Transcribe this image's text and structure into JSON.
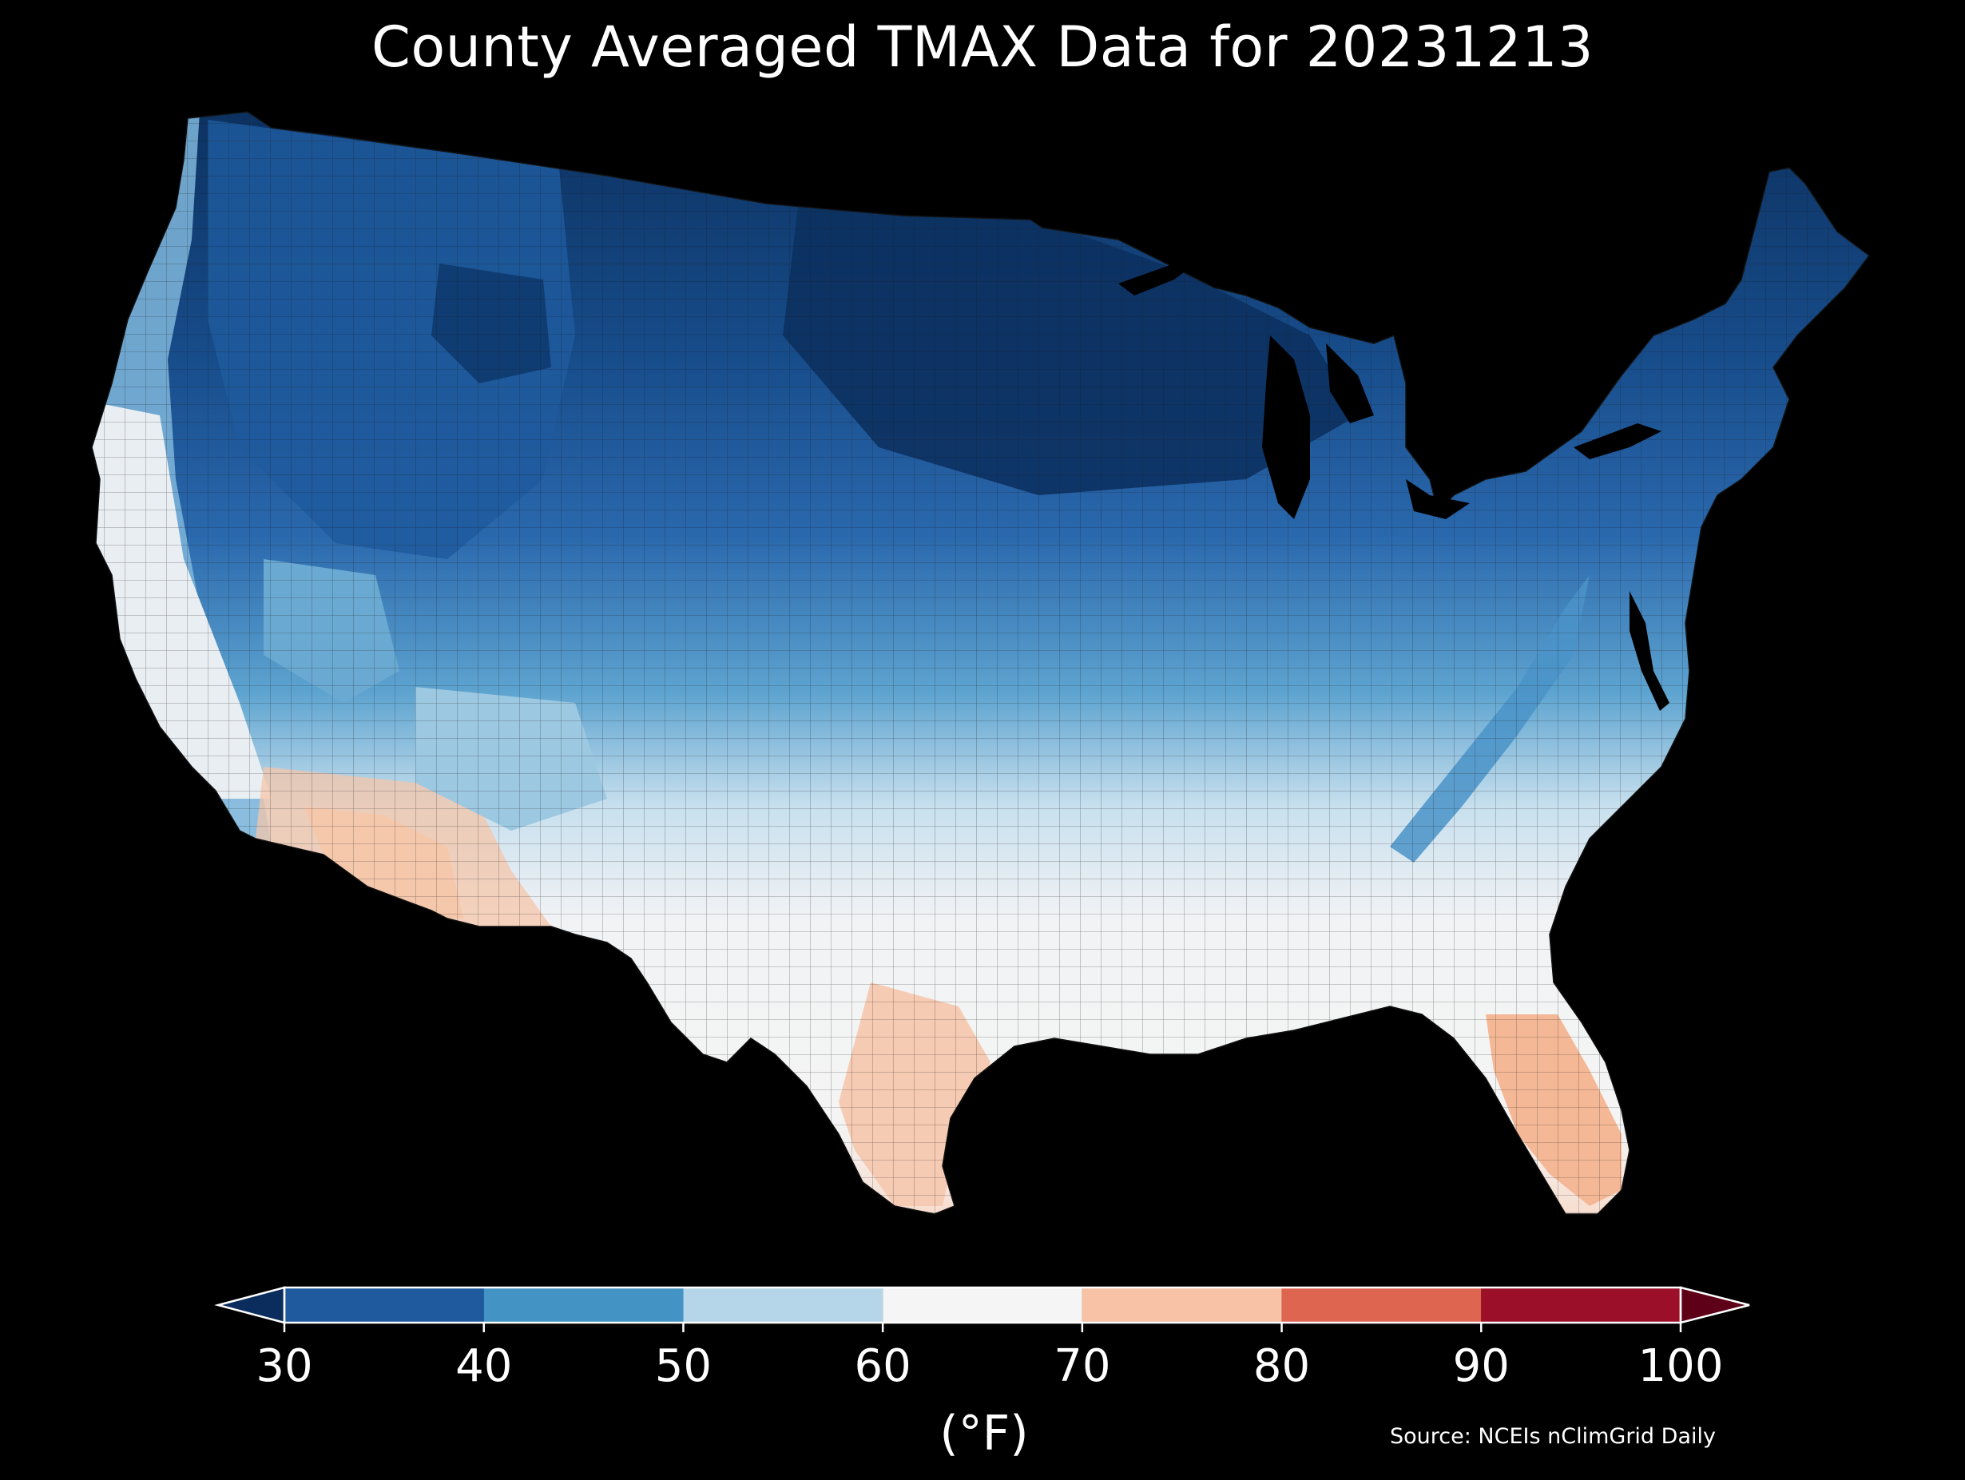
{
  "title": "County Averaged TMAX Data for 20231213",
  "source": "Source: NCEIs nClimGrid Daily",
  "colorbar": {
    "unit_label": "(°F)",
    "ticks": [
      "30",
      "40",
      "50",
      "60",
      "70",
      "80",
      "90",
      "100"
    ],
    "bins": [
      {
        "from": 30,
        "to": 40,
        "color": "#1f5a9e"
      },
      {
        "from": 40,
        "to": 50,
        "color": "#4393c4"
      },
      {
        "from": 50,
        "to": 60,
        "color": "#b5d6e8"
      },
      {
        "from": 60,
        "to": 70,
        "color": "#f5f5f5"
      },
      {
        "from": 70,
        "to": 80,
        "color": "#f8c2a6"
      },
      {
        "from": 80,
        "to": 90,
        "color": "#de6650"
      },
      {
        "from": 90,
        "to": 100,
        "color": "#9b1028"
      }
    ],
    "under_color": "#0b2d5e",
    "over_color": "#5e0018"
  },
  "map_regions": {
    "coldest": "#0c3160",
    "cold": "#2a68ad",
    "cool": "#5ea4d0",
    "mild": "#a9cfe4",
    "neutral": "#f2f3f5",
    "warm": "#f8d7c5",
    "warmer": "#f4bc9d"
  }
}
